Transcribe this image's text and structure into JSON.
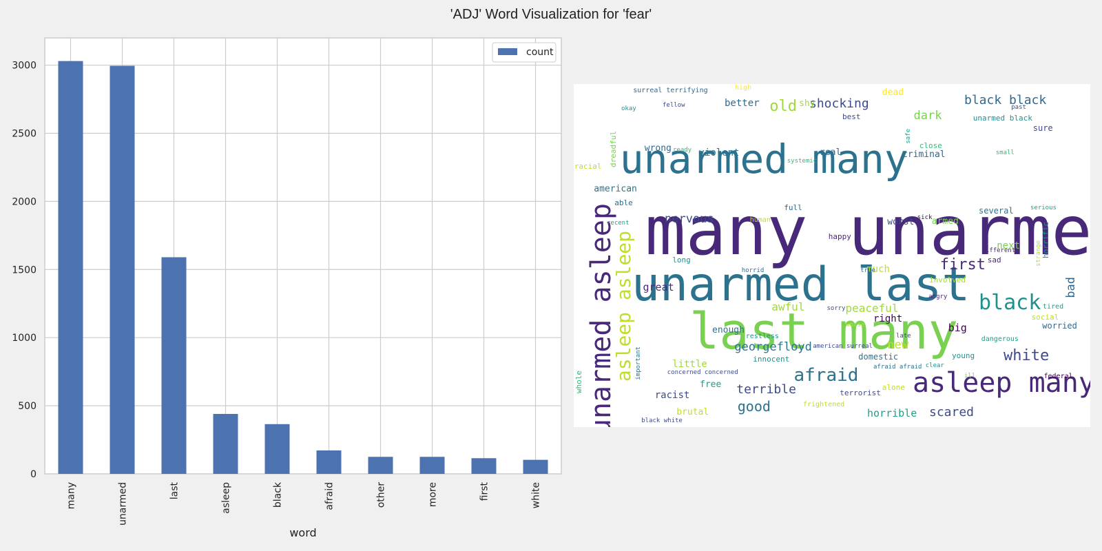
{
  "figure": {
    "title": "'ADJ' Word Visualization for 'fear'"
  },
  "chart_data": [
    {
      "type": "bar",
      "title": "",
      "xlabel": "word",
      "ylabel": "",
      "categories": [
        "many",
        "unarmed",
        "last",
        "asleep",
        "black",
        "afraid",
        "other",
        "more",
        "first",
        "white"
      ],
      "series": [
        {
          "name": "count",
          "values": [
            3030,
            2995,
            1590,
            440,
            365,
            172,
            125,
            125,
            115,
            103
          ],
          "color": "#4c72b0"
        }
      ],
      "ylim": [
        0,
        3200
      ],
      "yticks": [
        0,
        500,
        1000,
        1500,
        2000,
        2500,
        3000
      ],
      "grid": true,
      "legend": "top-right"
    },
    {
      "type": "wordcloud",
      "background": "#ffffff",
      "words": [
        {
          "text": "many unarmed",
          "x": 13.8,
          "y": 33.2,
          "size": 98,
          "color": "#482878"
        },
        {
          "text": "last many",
          "x": 22.4,
          "y": 64.8,
          "size": 72,
          "color": "#7ad151"
        },
        {
          "text": "unarmed last",
          "x": 11.2,
          "y": 51.8,
          "size": 68,
          "color": "#2c728e"
        },
        {
          "text": "unarmed many",
          "x": 8.9,
          "y": 16.0,
          "size": 58,
          "color": "#2c728e"
        },
        {
          "text": "unarmed asleep",
          "x": 2.6,
          "y": 34.7,
          "size": 40,
          "color": "#482878",
          "rotate": true
        },
        {
          "text": "asleep many",
          "x": 65.6,
          "y": 83.2,
          "size": 40,
          "color": "#482878"
        },
        {
          "text": "asleep asleep",
          "x": 7.9,
          "y": 42.7,
          "size": 28,
          "color": "#bddf26",
          "rotate": true
        },
        {
          "text": "black",
          "x": 78.4,
          "y": 60.8,
          "size": 30,
          "color": "#21908d"
        },
        {
          "text": "afraid",
          "x": 42.6,
          "y": 82.3,
          "size": 26,
          "color": "#2c728e"
        },
        {
          "text": "white",
          "x": 83.2,
          "y": 77.1,
          "size": 22,
          "color": "#3e4a89"
        },
        {
          "text": "first",
          "x": 70.9,
          "y": 50.6,
          "size": 22,
          "color": "#482878"
        },
        {
          "text": "old",
          "x": 37.9,
          "y": 4.4,
          "size": 22,
          "color": "#a0da39"
        },
        {
          "text": "black black",
          "x": 75.6,
          "y": 3.0,
          "size": 18,
          "color": "#31688e"
        },
        {
          "text": "shocking",
          "x": 45.6,
          "y": 4.0,
          "size": 18,
          "color": "#3e4a89"
        },
        {
          "text": "scared",
          "x": 68.8,
          "y": 94.0,
          "size": 18,
          "color": "#3e4a89"
        },
        {
          "text": "good",
          "x": 31.7,
          "y": 92.0,
          "size": 20,
          "color": "#2c728e"
        },
        {
          "text": "terrible",
          "x": 31.5,
          "y": 87.4,
          "size": 18,
          "color": "#3e4a89"
        },
        {
          "text": "georgefloyd",
          "x": 31.1,
          "y": 75.2,
          "size": 17,
          "color": "#2c728e"
        },
        {
          "text": "nervous",
          "x": 17.6,
          "y": 37.8,
          "size": 17,
          "color": "#3e4a89"
        },
        {
          "text": "awful",
          "x": 38.3,
          "y": 63.4,
          "size": 16,
          "color": "#a0da39"
        },
        {
          "text": "peaceful",
          "x": 52.6,
          "y": 63.8,
          "size": 16,
          "color": "#a0da39"
        },
        {
          "text": "dark",
          "x": 65.8,
          "y": 7.6,
          "size": 17,
          "color": "#7ad151"
        },
        {
          "text": "great",
          "x": 13.4,
          "y": 57.8,
          "size": 15,
          "color": "#482878"
        },
        {
          "text": "big",
          "x": 72.5,
          "y": 69.7,
          "size": 15,
          "color": "#440154"
        },
        {
          "text": "bad",
          "x": 95.2,
          "y": 56.2,
          "size": 17,
          "color": "#31688e",
          "rotate": true
        },
        {
          "text": "new",
          "x": 60.7,
          "y": 74.5,
          "size": 17,
          "color": "#bddf26"
        },
        {
          "text": "horrible",
          "x": 56.8,
          "y": 94.6,
          "size": 15,
          "color": "#1f9e89"
        },
        {
          "text": "next",
          "x": 81.9,
          "y": 45.8,
          "size": 14,
          "color": "#7ad151"
        },
        {
          "text": "much",
          "x": 56.7,
          "y": 52.6,
          "size": 14,
          "color": "#bddf26"
        },
        {
          "text": "right",
          "x": 58.0,
          "y": 67.0,
          "size": 14,
          "color": "#440154"
        },
        {
          "text": "racist",
          "x": 15.7,
          "y": 89.3,
          "size": 14,
          "color": "#3e4a89"
        },
        {
          "text": "little",
          "x": 19.1,
          "y": 80.3,
          "size": 14,
          "color": "#a0da39"
        },
        {
          "text": "better",
          "x": 29.2,
          "y": 4.2,
          "size": 14,
          "color": "#31688e"
        },
        {
          "text": "enough",
          "x": 26.8,
          "y": 70.5,
          "size": 13,
          "color": "#2c728e"
        },
        {
          "text": "free",
          "x": 24.4,
          "y": 86.3,
          "size": 13,
          "color": "#1f9e89"
        },
        {
          "text": "brutal",
          "x": 19.9,
          "y": 94.4,
          "size": 13,
          "color": "#bddf26"
        },
        {
          "text": "american",
          "x": 3.9,
          "y": 29.3,
          "size": 13,
          "color": "#2c728e"
        },
        {
          "text": "wrong",
          "x": 13.7,
          "y": 17.5,
          "size": 13,
          "color": "#31688e"
        },
        {
          "text": "violent",
          "x": 24.2,
          "y": 18.7,
          "size": 14,
          "color": "#2c728e"
        },
        {
          "text": "domestic",
          "x": 55.1,
          "y": 78.3,
          "size": 12,
          "color": "#2c728e"
        },
        {
          "text": "criminal",
          "x": 63.6,
          "y": 19.3,
          "size": 13,
          "color": "#31688e"
        },
        {
          "text": "worst",
          "x": 60.7,
          "y": 39.0,
          "size": 13,
          "color": "#3e4a89"
        },
        {
          "text": "armed",
          "x": 69.3,
          "y": 38.8,
          "size": 13,
          "color": "#7ad151"
        },
        {
          "text": "real",
          "x": 47.6,
          "y": 18.7,
          "size": 13,
          "color": "#31688e"
        },
        {
          "text": "shy",
          "x": 43.6,
          "y": 4.4,
          "size": 13,
          "color": "#a0da39"
        },
        {
          "text": "dead",
          "x": 59.7,
          "y": 1.2,
          "size": 13,
          "color": "#fde725"
        },
        {
          "text": "worried",
          "x": 90.7,
          "y": 69.3,
          "size": 12,
          "color": "#31688e"
        },
        {
          "text": "sure",
          "x": 88.9,
          "y": 11.7,
          "size": 12,
          "color": "#3e4a89"
        },
        {
          "text": "several",
          "x": 78.4,
          "y": 35.7,
          "size": 12,
          "color": "#2c728e"
        },
        {
          "text": "unarmed black",
          "x": 77.3,
          "y": 8.8,
          "size": 11,
          "color": "#21908d"
        },
        {
          "text": "full",
          "x": 40.7,
          "y": 34.9,
          "size": 11,
          "color": "#31688e"
        },
        {
          "text": "happy",
          "x": 49.3,
          "y": 43.4,
          "size": 11,
          "color": "#482878"
        },
        {
          "text": "involved",
          "x": 68.8,
          "y": 56.0,
          "size": 11,
          "color": "#a0da39"
        },
        {
          "text": "peaceful",
          "x": 52.6,
          "y": 63.8,
          "size": 16,
          "color": "#a0da39"
        },
        {
          "text": "young",
          "x": 73.2,
          "y": 78.1,
          "size": 11,
          "color": "#21908d"
        },
        {
          "text": "sad",
          "x": 80.1,
          "y": 50.2,
          "size": 11,
          "color": "#482878"
        },
        {
          "text": "long",
          "x": 19.1,
          "y": 50.2,
          "size": 11,
          "color": "#21908d"
        },
        {
          "text": "able",
          "x": 7.9,
          "y": 33.5,
          "size": 11,
          "color": "#31688e"
        },
        {
          "text": "innocent",
          "x": 34.7,
          "y": 79.1,
          "size": 11,
          "color": "#21908d"
        },
        {
          "text": "close",
          "x": 66.9,
          "y": 16.8,
          "size": 11,
          "color": "#35b779"
        },
        {
          "text": "best",
          "x": 52.0,
          "y": 8.4,
          "size": 11,
          "color": "#3e4a89"
        },
        {
          "text": "social",
          "x": 88.6,
          "y": 66.9,
          "size": 11,
          "color": "#bddf26"
        },
        {
          "text": "tired",
          "x": 90.8,
          "y": 64.0,
          "size": 10,
          "color": "#1f9e89"
        },
        {
          "text": "restless",
          "x": 33.3,
          "y": 72.7,
          "size": 10,
          "color": "#21908d"
        },
        {
          "text": "terrorist",
          "x": 51.5,
          "y": 89.0,
          "size": 11,
          "color": "#3e4a89"
        },
        {
          "text": "alone",
          "x": 59.7,
          "y": 87.4,
          "size": 11,
          "color": "#bddf26"
        },
        {
          "text": "dangerous",
          "x": 78.9,
          "y": 73.5,
          "size": 10,
          "color": "#1f9e89"
        },
        {
          "text": "federal",
          "x": 91.0,
          "y": 84.4,
          "size": 10,
          "color": "#440154"
        },
        {
          "text": "frightened",
          "x": 44.4,
          "y": 92.6,
          "size": 10,
          "color": "#bddf26"
        },
        {
          "text": "human",
          "x": 34.1,
          "y": 38.8,
          "size": 10,
          "color": "#bddf26"
        },
        {
          "text": "dreadful",
          "x": 6.9,
          "y": 13.7,
          "size": 11,
          "color": "#7ad151",
          "rotate": true
        },
        {
          "text": "racial",
          "x": 0.1,
          "y": 22.9,
          "size": 11,
          "color": "#bddf26"
        },
        {
          "text": "whole",
          "x": 0.2,
          "y": 83.6,
          "size": 11,
          "color": "#35b779",
          "rotate": true
        },
        {
          "text": "important",
          "x": 12.0,
          "y": 76.5,
          "size": 9,
          "color": "#2c728e",
          "rotate": true
        },
        {
          "text": "horrific",
          "x": 90.6,
          "y": 40.2,
          "size": 11,
          "color": "#21908d",
          "rotate": true
        },
        {
          "text": "strange",
          "x": 89.5,
          "y": 45.6,
          "size": 9,
          "color": "#bddf26",
          "rotate": true
        },
        {
          "text": "surreal terrifying",
          "x": 11.5,
          "y": 1.0,
          "size": 10,
          "color": "#31688e"
        },
        {
          "text": "high",
          "x": 31.2,
          "y": 0.2,
          "size": 10,
          "color": "#fde725"
        },
        {
          "text": "okay",
          "x": 9.2,
          "y": 6.4,
          "size": 9,
          "color": "#21908d"
        },
        {
          "text": "fellow",
          "x": 17.2,
          "y": 5.4,
          "size": 9,
          "color": "#3e4a89"
        },
        {
          "text": "past",
          "x": 84.7,
          "y": 6.0,
          "size": 9,
          "color": "#3e4a89"
        },
        {
          "text": "safe",
          "x": 64.2,
          "y": 13.1,
          "size": 9,
          "color": "#1f9e89",
          "rotate": true
        },
        {
          "text": "ready",
          "x": 19.2,
          "y": 18.5,
          "size": 9,
          "color": "#35b779"
        },
        {
          "text": "systemic",
          "x": 41.3,
          "y": 21.6,
          "size": 9,
          "color": "#35b779"
        },
        {
          "text": "small",
          "x": 81.7,
          "y": 19.3,
          "size": 9,
          "color": "#35b779"
        },
        {
          "text": "serious",
          "x": 88.4,
          "y": 35.3,
          "size": 9,
          "color": "#1f9e89"
        },
        {
          "text": "recent",
          "x": 6.4,
          "y": 39.8,
          "size": 9,
          "color": "#1f9e89"
        },
        {
          "text": "sick",
          "x": 66.5,
          "y": 38.2,
          "size": 9,
          "color": "#440154"
        },
        {
          "text": "different",
          "x": 79.0,
          "y": 47.8,
          "size": 9,
          "color": "#482878"
        },
        {
          "text": "horrid",
          "x": 32.5,
          "y": 53.6,
          "size": 9,
          "color": "#31688e"
        },
        {
          "text": "true",
          "x": 55.5,
          "y": 53.6,
          "size": 9,
          "color": "#31688e"
        },
        {
          "text": "angry",
          "x": 68.7,
          "y": 61.2,
          "size": 9,
          "color": "#482878"
        },
        {
          "text": "sorry",
          "x": 49.0,
          "y": 64.6,
          "size": 9,
          "color": "#3e4a89"
        },
        {
          "text": "worse",
          "x": 52.7,
          "y": 69.5,
          "size": 9,
          "color": "#bddf26"
        },
        {
          "text": "late",
          "x": 62.4,
          "y": 72.7,
          "size": 9,
          "color": "#3e4a89"
        },
        {
          "text": "american surreal",
          "x": 46.3,
          "y": 75.7,
          "size": 9,
          "color": "#3e4a89"
        },
        {
          "text": "afraid afraid",
          "x": 58.0,
          "y": 81.7,
          "size": 9,
          "color": "#2c728e"
        },
        {
          "text": "clear",
          "x": 68.1,
          "y": 81.3,
          "size": 9,
          "color": "#21908d"
        },
        {
          "text": "ill",
          "x": 75.6,
          "y": 84.4,
          "size": 9,
          "color": "#7ad151"
        },
        {
          "text": "concerned concerned",
          "x": 18.1,
          "y": 83.4,
          "size": 9,
          "color": "#3e4a89"
        },
        {
          "text": "black white",
          "x": 13.1,
          "y": 97.4,
          "size": 9,
          "color": "#3e4a89"
        }
      ]
    }
  ]
}
